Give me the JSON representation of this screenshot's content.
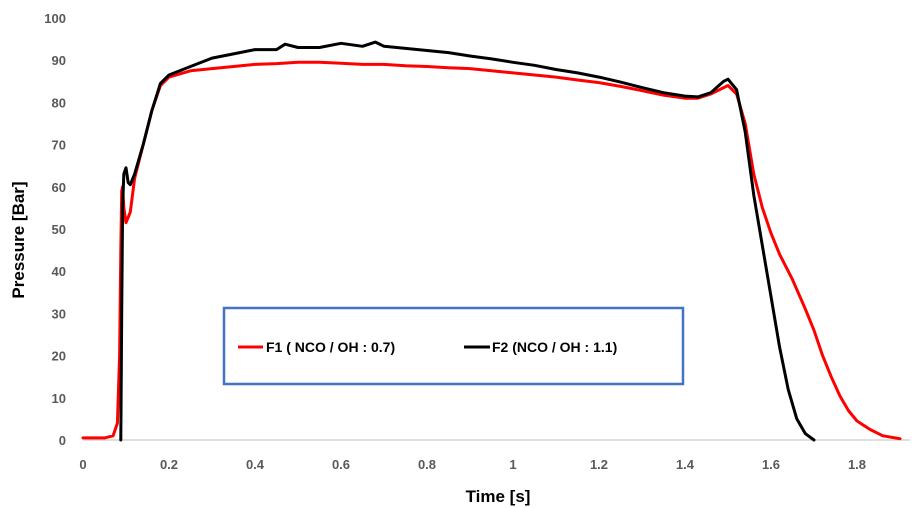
{
  "chart_data": {
    "type": "line",
    "title": "",
    "xlabel": "Time [s]",
    "ylabel": "Pressure [Bar]",
    "xlim": [
      0,
      1.9
    ],
    "ylim": [
      0,
      100
    ],
    "x_ticks": [
      0,
      0.2,
      0.4,
      0.6,
      0.8,
      1,
      1.2,
      1.4,
      1.6,
      1.8
    ],
    "x_tick_labels": [
      "0",
      "0.2",
      "0.4",
      "0.6",
      "0.8",
      "1",
      "1.2",
      "1.4",
      "1.6",
      "1.8"
    ],
    "y_ticks": [
      0,
      10,
      20,
      30,
      40,
      50,
      60,
      70,
      80,
      90,
      100
    ],
    "y_tick_labels": [
      "0",
      "10",
      "20",
      "30",
      "40",
      "50",
      "60",
      "70",
      "80",
      "90",
      "100"
    ],
    "grid": false,
    "legend": "center, boxed",
    "legend_border_color": "#4472C4",
    "series": [
      {
        "name": "F1 ( NCO / OH : 0.7)",
        "color": "#FF0000",
        "points": [
          [
            0,
            0.5
          ],
          [
            0.05,
            0.5
          ],
          [
            0.07,
            1
          ],
          [
            0.08,
            4
          ],
          [
            0.085,
            20
          ],
          [
            0.088,
            45
          ],
          [
            0.09,
            59
          ],
          [
            0.092,
            60
          ],
          [
            0.095,
            55
          ],
          [
            0.1,
            51.5
          ],
          [
            0.11,
            54
          ],
          [
            0.12,
            62
          ],
          [
            0.14,
            70
          ],
          [
            0.16,
            78
          ],
          [
            0.18,
            84
          ],
          [
            0.2,
            86
          ],
          [
            0.25,
            87.5
          ],
          [
            0.3,
            88
          ],
          [
            0.35,
            88.5
          ],
          [
            0.4,
            89
          ],
          [
            0.45,
            89.2
          ],
          [
            0.5,
            89.5
          ],
          [
            0.55,
            89.5
          ],
          [
            0.6,
            89.3
          ],
          [
            0.65,
            89
          ],
          [
            0.7,
            89
          ],
          [
            0.75,
            88.7
          ],
          [
            0.8,
            88.5
          ],
          [
            0.85,
            88.2
          ],
          [
            0.9,
            88
          ],
          [
            0.95,
            87.5
          ],
          [
            1.0,
            87
          ],
          [
            1.05,
            86.5
          ],
          [
            1.1,
            86
          ],
          [
            1.15,
            85.3
          ],
          [
            1.2,
            84.7
          ],
          [
            1.25,
            83.8
          ],
          [
            1.3,
            82.8
          ],
          [
            1.35,
            81.7
          ],
          [
            1.4,
            81
          ],
          [
            1.43,
            81
          ],
          [
            1.46,
            82
          ],
          [
            1.5,
            84
          ],
          [
            1.52,
            82
          ],
          [
            1.54,
            75
          ],
          [
            1.56,
            63
          ],
          [
            1.58,
            55
          ],
          [
            1.6,
            49
          ],
          [
            1.62,
            44
          ],
          [
            1.65,
            38
          ],
          [
            1.68,
            31
          ],
          [
            1.7,
            26
          ],
          [
            1.72,
            20
          ],
          [
            1.74,
            15
          ],
          [
            1.76,
            10.5
          ],
          [
            1.78,
            7
          ],
          [
            1.8,
            4.5
          ],
          [
            1.83,
            2.5
          ],
          [
            1.86,
            1
          ],
          [
            1.9,
            0.3
          ]
        ]
      },
      {
        "name": "F2 (NCO / OH : 1.1)",
        "color": "#000000",
        "points": [
          [
            0.088,
            0
          ],
          [
            0.09,
            30
          ],
          [
            0.092,
            55
          ],
          [
            0.095,
            63
          ],
          [
            0.1,
            64.5
          ],
          [
            0.105,
            61
          ],
          [
            0.11,
            60.5
          ],
          [
            0.12,
            63
          ],
          [
            0.14,
            70
          ],
          [
            0.16,
            78
          ],
          [
            0.18,
            84.5
          ],
          [
            0.2,
            86.5
          ],
          [
            0.25,
            88.5
          ],
          [
            0.3,
            90.5
          ],
          [
            0.35,
            91.5
          ],
          [
            0.4,
            92.5
          ],
          [
            0.45,
            92.5
          ],
          [
            0.47,
            93.8
          ],
          [
            0.5,
            93
          ],
          [
            0.55,
            93
          ],
          [
            0.6,
            94
          ],
          [
            0.65,
            93.3
          ],
          [
            0.68,
            94.3
          ],
          [
            0.7,
            93.3
          ],
          [
            0.75,
            92.8
          ],
          [
            0.8,
            92.3
          ],
          [
            0.85,
            91.8
          ],
          [
            0.9,
            91
          ],
          [
            0.95,
            90.3
          ],
          [
            1.0,
            89.5
          ],
          [
            1.05,
            88.8
          ],
          [
            1.1,
            87.8
          ],
          [
            1.15,
            87
          ],
          [
            1.2,
            86
          ],
          [
            1.25,
            84.8
          ],
          [
            1.3,
            83.5
          ],
          [
            1.35,
            82.3
          ],
          [
            1.4,
            81.5
          ],
          [
            1.43,
            81.3
          ],
          [
            1.46,
            82.3
          ],
          [
            1.49,
            85
          ],
          [
            1.5,
            85.5
          ],
          [
            1.52,
            83
          ],
          [
            1.54,
            73
          ],
          [
            1.56,
            58
          ],
          [
            1.58,
            46
          ],
          [
            1.6,
            34
          ],
          [
            1.62,
            22
          ],
          [
            1.64,
            12
          ],
          [
            1.66,
            5
          ],
          [
            1.68,
            1.5
          ],
          [
            1.7,
            0
          ]
        ]
      }
    ]
  }
}
